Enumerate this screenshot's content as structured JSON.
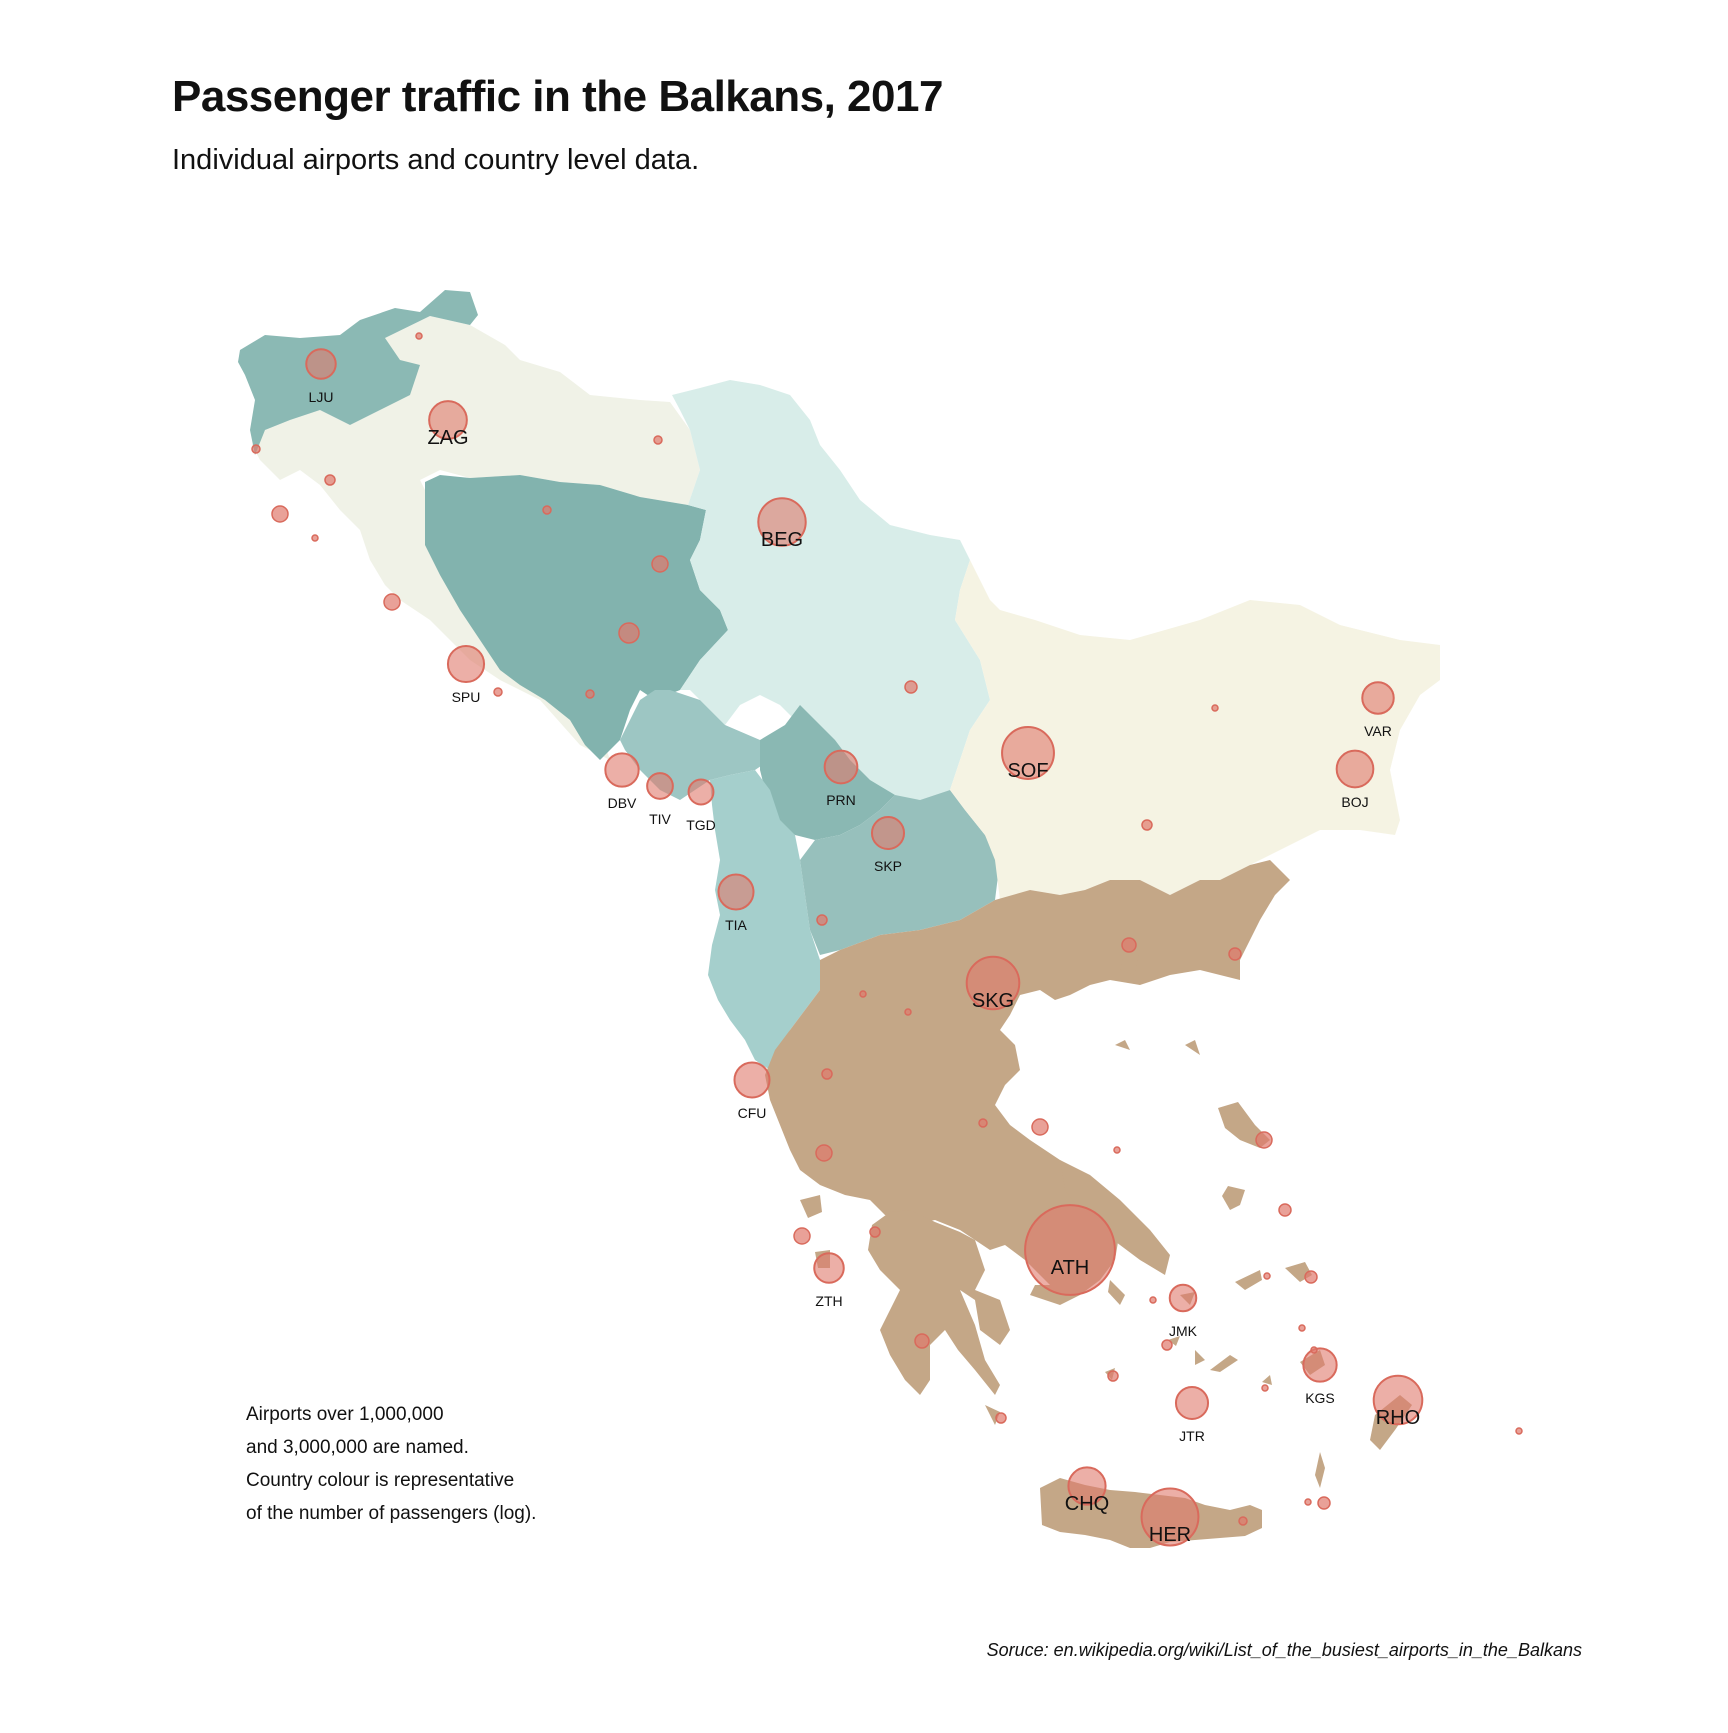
{
  "title": "Passenger traffic in the Balkans, 2017",
  "subtitle": "Individual airports and country level data.",
  "note": [
    "Airports over 1,000,000",
    "and 3,000,000 are named.",
    "Country colour is representative",
    "of the number of passengers (log)."
  ],
  "source": "Soruce: en.wikipedia.org/wiki/List_of_the_busiest_airports_in_the_Balkans",
  "colors": {
    "slovenia": "#8bb9b4",
    "croatia": "#f0f2e7",
    "bosnia": "#82b3ae",
    "serbia": "#d8ede9",
    "montenegro": "#9dc6c3",
    "kosovo": "#8ab8b3",
    "albania": "#a5cfcc",
    "north_macedonia": "#97c0bc",
    "bulgaria": "#f5f3e3",
    "greece": "#c4a787",
    "airport_fill": "#e0796c",
    "airport_stroke": "#d96a5c"
  },
  "airports": [
    {
      "code": "ATH",
      "label": "ATH",
      "label_size": "large",
      "passengers_millions": 21.7
    },
    {
      "code": "SKG",
      "label": "SKG",
      "label_size": "large",
      "passengers_millions": 6.7
    },
    {
      "code": "HER",
      "label": "HER",
      "label_size": "large",
      "passengers_millions": 8.0
    },
    {
      "code": "SOF",
      "label": "SOF",
      "label_size": "large",
      "passengers_millions": 6.5
    },
    {
      "code": "BEG",
      "label": "BEG",
      "label_size": "large",
      "passengers_millions": 5.3
    },
    {
      "code": "RHO",
      "label": "RHO",
      "label_size": "large",
      "passengers_millions": 5.6
    },
    {
      "code": "ZAG",
      "label": "ZAG",
      "label_size": "large",
      "passengers_millions": 3.1
    },
    {
      "code": "CHQ",
      "label": "CHQ",
      "label_size": "large",
      "passengers_millions": 3.0
    },
    {
      "code": "SPU",
      "label": "SPU",
      "label_size": "small",
      "passengers_millions": 2.8
    },
    {
      "code": "TIA",
      "label": "TIA",
      "label_size": "small",
      "passengers_millions": 2.6
    },
    {
      "code": "CFU",
      "label": "CFU",
      "label_size": "small",
      "passengers_millions": 2.6
    },
    {
      "code": "DBV",
      "label": "DBV",
      "label_size": "small",
      "passengers_millions": 2.3
    },
    {
      "code": "KGS",
      "label": "KGS",
      "label_size": "small",
      "passengers_millions": 2.3
    },
    {
      "code": "BOJ",
      "label": "BOJ",
      "label_size": "small",
      "passengers_millions": 2.9
    },
    {
      "code": "VAR",
      "label": "VAR",
      "label_size": "small",
      "passengers_millions": 2.0
    },
    {
      "code": "PRN",
      "label": "PRN",
      "label_size": "small",
      "passengers_millions": 2.2
    },
    {
      "code": "SKP",
      "label": "SKP",
      "label_size": "small",
      "passengers_millions": 2.1
    },
    {
      "code": "LJU",
      "label": "LJU",
      "label_size": "small",
      "passengers_millions": 1.7
    },
    {
      "code": "ZTH",
      "label": "ZTH",
      "label_size": "small",
      "passengers_millions": 1.7
    },
    {
      "code": "JMK",
      "label": "JMK",
      "label_size": "small",
      "passengers_millions": 1.3
    },
    {
      "code": "JTR",
      "label": "JTR",
      "label_size": "small",
      "passengers_millions": 2.1
    },
    {
      "code": "TGD",
      "label": "TGD",
      "label_size": "small",
      "passengers_millions": 1.1
    },
    {
      "code": "TIV",
      "label": "TIV",
      "label_size": "small",
      "passengers_millions": 1.2
    }
  ]
}
